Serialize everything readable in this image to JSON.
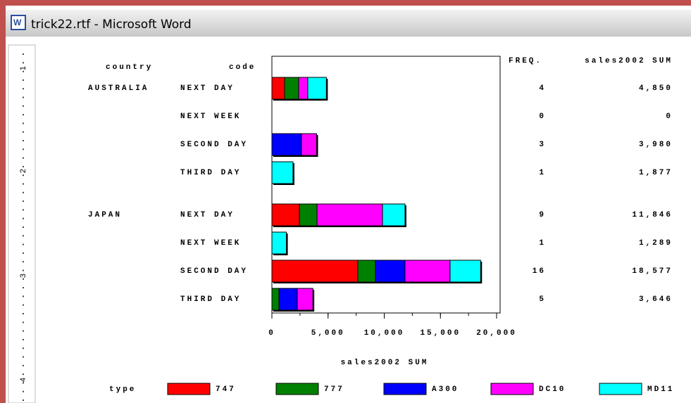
{
  "window": {
    "title": "trick22.rtf - Microsoft Word"
  },
  "ruler": [
    "1",
    "2",
    "3",
    "4"
  ],
  "chart_data": {
    "type": "bar",
    "orientation": "horizontal",
    "stacked": true,
    "column_headers": {
      "group": "country",
      "category": "code",
      "freq": "FREQ.",
      "sum": "sales2002 SUM"
    },
    "groups": [
      "AUSTRALIA",
      null,
      null,
      null,
      "JAPAN",
      null,
      null,
      null
    ],
    "categories": [
      "NEXT DAY",
      "NEXT WEEK",
      "SECOND DAY",
      "THIRD DAY",
      "NEXT DAY",
      "NEXT WEEK",
      "SECOND DAY",
      "THIRD DAY"
    ],
    "series": [
      {
        "name": "747",
        "color": "#ff0000",
        "values": [
          1130,
          null,
          null,
          null,
          2445,
          null,
          7650,
          null
        ]
      },
      {
        "name": "777",
        "color": "#008000",
        "values": [
          1250,
          null,
          null,
          null,
          1570,
          null,
          1570,
          630
        ]
      },
      {
        "name": "A300",
        "color": "#0000ff",
        "values": [
          null,
          null,
          2630,
          null,
          null,
          null,
          2630,
          1630
        ]
      },
      {
        "name": "DC10",
        "color": "#ff00ff",
        "values": [
          815,
          null,
          1350,
          null,
          5830,
          null,
          4010,
          1386
        ]
      },
      {
        "name": "MD11",
        "color": "#00ffff",
        "values": [
          1655,
          null,
          null,
          1877,
          2001,
          1289,
          2717,
          null
        ]
      }
    ],
    "freq": [
      4,
      0,
      3,
      1,
      9,
      1,
      16,
      5
    ],
    "sum": {
      "values": [
        4850,
        0,
        3980,
        1877,
        11846,
        1289,
        18577,
        3646
      ],
      "value_labels": [
        "4,850",
        "0",
        "3,980",
        "1,877",
        "11,846",
        "1,289",
        "18,577",
        "3,646"
      ]
    },
    "xlim": [
      0,
      20000
    ],
    "xticks": [
      0,
      {
        "value": 5000,
        "label": "5,000"
      },
      {
        "value": 10000,
        "label": "10,000"
      },
      {
        "value": 15000,
        "label": "15,000"
      },
      {
        "value": 20000,
        "label": "20,000"
      }
    ],
    "xlabel": "sales2002 SUM",
    "legend_title": "type"
  }
}
